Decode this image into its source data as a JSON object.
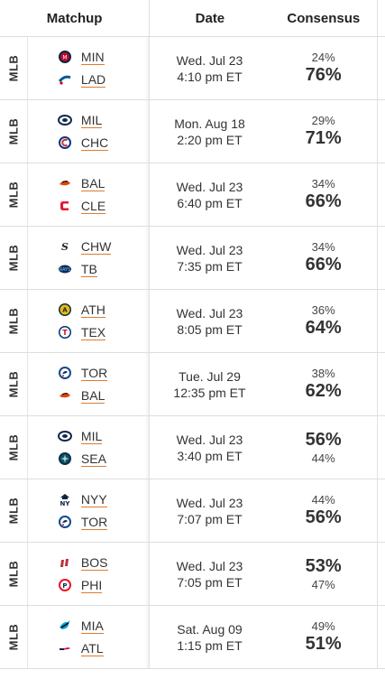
{
  "header": {
    "matchup": "Matchup",
    "date": "Date",
    "consensus": "Consensus"
  },
  "rows": [
    {
      "league": "MLB",
      "away": "MIN",
      "home": "LAD",
      "away_logo": "twins-logo-icon",
      "home_logo": "dodgers-logo-icon",
      "day": "Wed. Jul 23",
      "time": "4:10 pm ET",
      "away_pct": "24%",
      "home_pct": "76%",
      "fav": "home"
    },
    {
      "league": "MLB",
      "away": "MIL",
      "home": "CHC",
      "away_logo": "brewers-logo-icon",
      "home_logo": "cubs-logo-icon",
      "day": "Mon. Aug 18",
      "time": "2:20 pm ET",
      "away_pct": "29%",
      "home_pct": "71%",
      "fav": "home"
    },
    {
      "league": "MLB",
      "away": "BAL",
      "home": "CLE",
      "away_logo": "orioles-logo-icon",
      "home_logo": "guardians-logo-icon",
      "day": "Wed. Jul 23",
      "time": "6:40 pm ET",
      "away_pct": "34%",
      "home_pct": "66%",
      "fav": "home"
    },
    {
      "league": "MLB",
      "away": "CHW",
      "home": "TB",
      "away_logo": "white-sox-logo-icon",
      "home_logo": "rays-logo-icon",
      "day": "Wed. Jul 23",
      "time": "7:35 pm ET",
      "away_pct": "34%",
      "home_pct": "66%",
      "fav": "home"
    },
    {
      "league": "MLB",
      "away": "ATH",
      "home": "TEX",
      "away_logo": "athletics-logo-icon",
      "home_logo": "rangers-logo-icon",
      "day": "Wed. Jul 23",
      "time": "8:05 pm ET",
      "away_pct": "36%",
      "home_pct": "64%",
      "fav": "home"
    },
    {
      "league": "MLB",
      "away": "TOR",
      "home": "BAL",
      "away_logo": "blue-jays-logo-icon",
      "home_logo": "orioles-logo-icon",
      "day": "Tue. Jul 29",
      "time": "12:35 pm ET",
      "away_pct": "38%",
      "home_pct": "62%",
      "fav": "home"
    },
    {
      "league": "MLB",
      "away": "MIL",
      "home": "SEA",
      "away_logo": "brewers-logo-icon",
      "home_logo": "mariners-logo-icon",
      "day": "Wed. Jul 23",
      "time": "3:40 pm ET",
      "away_pct": "56%",
      "home_pct": "44%",
      "fav": "away"
    },
    {
      "league": "MLB",
      "away": "NYY",
      "home": "TOR",
      "away_logo": "yankees-logo-icon",
      "home_logo": "blue-jays-logo-icon",
      "day": "Wed. Jul 23",
      "time": "7:07 pm ET",
      "away_pct": "44%",
      "home_pct": "56%",
      "fav": "home"
    },
    {
      "league": "MLB",
      "away": "BOS",
      "home": "PHI",
      "away_logo": "red-sox-logo-icon",
      "home_logo": "phillies-logo-icon",
      "day": "Wed. Jul 23",
      "time": "7:05 pm ET",
      "away_pct": "53%",
      "home_pct": "47%",
      "fav": "away"
    },
    {
      "league": "MLB",
      "away": "MIA",
      "home": "ATL",
      "away_logo": "marlins-logo-icon",
      "home_logo": "braves-logo-icon",
      "day": "Sat. Aug 09",
      "time": "1:15 pm ET",
      "away_pct": "49%",
      "home_pct": "51%",
      "fav": "home"
    }
  ],
  "colors": {
    "link_underline": "#e07b2c",
    "text": "#333333",
    "divider": "#dedede"
  }
}
